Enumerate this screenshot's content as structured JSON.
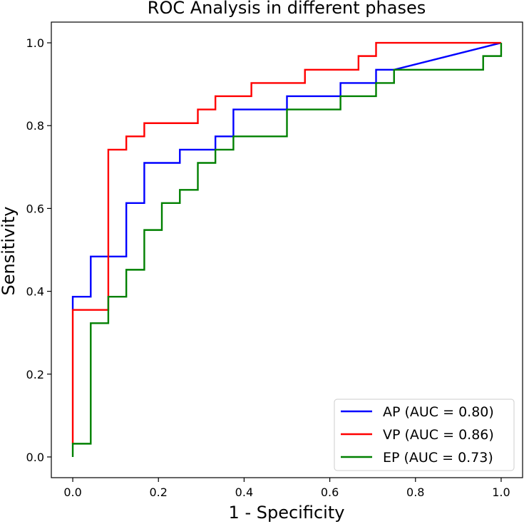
{
  "chart_data": {
    "type": "line",
    "title": "ROC Analysis in different phases",
    "xlabel": "1 - Specificity",
    "ylabel": "Sensitivity",
    "xlim": [
      -0.05,
      1.05
    ],
    "ylim": [
      -0.05,
      1.05
    ],
    "xticks": [
      0.0,
      0.2,
      0.4,
      0.6,
      0.8,
      1.0
    ],
    "yticks": [
      0.0,
      0.2,
      0.4,
      0.6,
      0.8,
      1.0
    ],
    "x_tick_labels": [
      "0.0",
      "0.2",
      "0.4",
      "0.6",
      "0.8",
      "1.0"
    ],
    "y_tick_labels": [
      "0.0",
      "0.2",
      "0.4",
      "0.6",
      "0.8",
      "1.0"
    ],
    "grid": false,
    "legend_position": "lower-right",
    "series": [
      {
        "name": "AP",
        "legend_label": "AP (AUC = 0.80)",
        "color": "#0000ff",
        "x": [
          0.0,
          0.0,
          0.042,
          0.042,
          0.125,
          0.125,
          0.167,
          0.167,
          0.25,
          0.25,
          0.333,
          0.333,
          0.375,
          0.375,
          0.5,
          0.5,
          0.625,
          0.625,
          0.708,
          0.708,
          0.75,
          0.75,
          1.0
        ],
        "y": [
          0.355,
          0.387,
          0.387,
          0.484,
          0.484,
          0.613,
          0.613,
          0.71,
          0.71,
          0.742,
          0.742,
          0.774,
          0.774,
          0.839,
          0.839,
          0.871,
          0.871,
          0.903,
          0.903,
          0.935,
          0.935,
          0.935,
          1.0
        ]
      },
      {
        "name": "VP",
        "legend_label": "VP (AUC = 0.86)",
        "color": "#ff0000",
        "x": [
          0.0,
          0.0,
          0.0,
          0.083,
          0.083,
          0.125,
          0.125,
          0.167,
          0.167,
          0.292,
          0.292,
          0.333,
          0.333,
          0.417,
          0.417,
          0.542,
          0.542,
          0.667,
          0.667,
          0.708,
          0.708,
          1.0
        ],
        "y": [
          0.032,
          0.032,
          0.355,
          0.355,
          0.742,
          0.742,
          0.774,
          0.774,
          0.806,
          0.806,
          0.839,
          0.839,
          0.871,
          0.871,
          0.903,
          0.903,
          0.935,
          0.935,
          0.968,
          0.968,
          1.0,
          1.0
        ]
      },
      {
        "name": "EP",
        "legend_label": "EP (AUC = 0.73)",
        "color": "#008000",
        "x": [
          0.0,
          0.0,
          0.042,
          0.042,
          0.083,
          0.083,
          0.125,
          0.125,
          0.167,
          0.167,
          0.208,
          0.208,
          0.25,
          0.25,
          0.292,
          0.292,
          0.333,
          0.333,
          0.375,
          0.375,
          0.5,
          0.5,
          0.625,
          0.625,
          0.708,
          0.708,
          0.75,
          0.75,
          0.958,
          0.958,
          1.0,
          1.0
        ],
        "y": [
          0.0,
          0.032,
          0.032,
          0.323,
          0.323,
          0.387,
          0.387,
          0.452,
          0.452,
          0.548,
          0.548,
          0.613,
          0.613,
          0.645,
          0.645,
          0.71,
          0.71,
          0.742,
          0.742,
          0.774,
          0.774,
          0.839,
          0.839,
          0.871,
          0.871,
          0.903,
          0.903,
          0.935,
          0.935,
          0.968,
          0.968,
          1.0
        ]
      }
    ]
  }
}
